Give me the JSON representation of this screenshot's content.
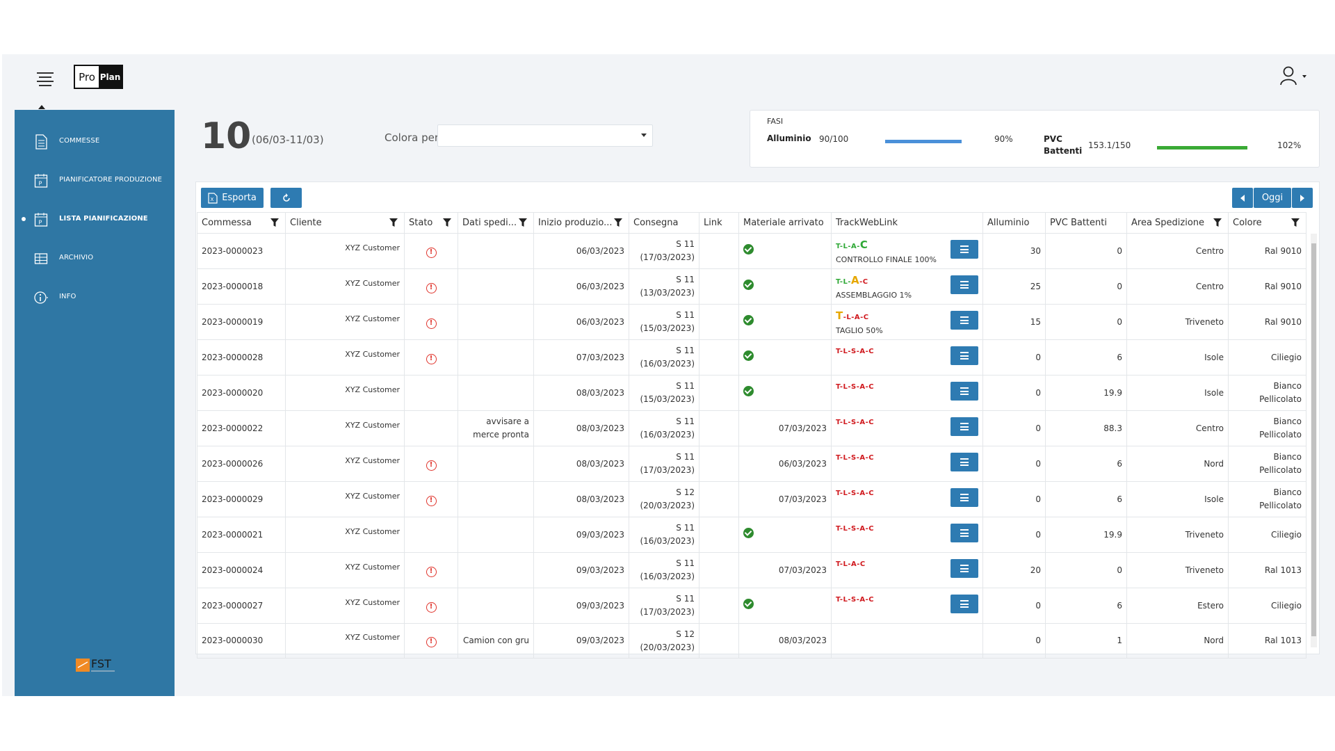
{
  "logo": {
    "pro": "Pro",
    "plan": "Plan"
  },
  "sidebar": {
    "items": [
      {
        "label": "COMMESSE",
        "icon": "document-icon"
      },
      {
        "label": "PIANIFICATORE PRODUZIONE",
        "icon": "calendar-p-icon"
      },
      {
        "label": "LISTA PIANIFICAZIONE",
        "icon": "calendar-p-icon",
        "active": true
      },
      {
        "label": "ARCHIVIO",
        "icon": "archive-grid-icon"
      },
      {
        "label": "INFO",
        "icon": "info-icon"
      }
    ],
    "footer_logo": "FST"
  },
  "header": {
    "week": "10",
    "range": "(06/03-11/03)",
    "colora_label": "Colora per",
    "colora_value": ""
  },
  "fasi": {
    "title": "FASI",
    "items": [
      {
        "name": "Alluminio",
        "value": "90/100",
        "percent": "90%",
        "fill": 0.9,
        "color": "#4a90d9"
      },
      {
        "name": "PVC Battenti",
        "value": "153.1/150",
        "percent": "102%",
        "fill": 1.0,
        "color": "#3aaa35"
      }
    ]
  },
  "toolbar": {
    "export_label": "Esporta",
    "today_label": "Oggi"
  },
  "table": {
    "columns": [
      "Commessa",
      "Cliente",
      "Stato",
      "Dati spedi...",
      "Inizio produzio...",
      "Consegna",
      "Link",
      "Materiale arrivato",
      "TrackWebLink",
      "Alluminio",
      "PVC Battenti",
      "Area Spedizione",
      "Colore"
    ],
    "rows": [
      {
        "commessa": "2023-0000023",
        "cliente": "XYZ Customer",
        "warn": true,
        "dati": "",
        "inizio": "06/03/2023",
        "cons1": "S 11",
        "cons2": "(17/03/2023)",
        "mat": "ok",
        "track": "T-L-A-C",
        "trackStyle": "a",
        "trackSub": "CONTROLLO FINALE 100%",
        "all": "30",
        "pvc": "0",
        "area": "Centro",
        "col1": "Ral 9010",
        "col2": ""
      },
      {
        "commessa": "2023-0000018",
        "cliente": "XYZ Customer",
        "warn": true,
        "dati": "",
        "inizio": "06/03/2023",
        "cons1": "S 11",
        "cons2": "(13/03/2023)",
        "mat": "ok",
        "track": "T-L-A-C",
        "trackStyle": "b",
        "trackSub": "ASSEMBLAGGIO 1%",
        "all": "25",
        "pvc": "0",
        "area": "Centro",
        "col1": "Ral 9010",
        "col2": ""
      },
      {
        "commessa": "2023-0000019",
        "cliente": "XYZ Customer",
        "warn": true,
        "dati": "",
        "inizio": "06/03/2023",
        "cons1": "S 11",
        "cons2": "(15/03/2023)",
        "mat": "ok",
        "track": "T-L-A-C",
        "trackStyle": "c",
        "trackSub": "TAGLIO 50%",
        "all": "15",
        "pvc": "0",
        "area": "Triveneto",
        "col1": "Ral 9010",
        "col2": ""
      },
      {
        "commessa": "2023-0000028",
        "cliente": "XYZ Customer",
        "warn": true,
        "dati": "",
        "inizio": "07/03/2023",
        "cons1": "S 11",
        "cons2": "(16/03/2023)",
        "mat": "ok",
        "track": "T-L-S-A-C",
        "trackStyle": "r",
        "trackSub": "",
        "all": "0",
        "pvc": "6",
        "area": "Isole",
        "col1": "Ciliegio",
        "col2": ""
      },
      {
        "commessa": "2023-0000020",
        "cliente": "XYZ Customer",
        "warn": false,
        "dati": "",
        "inizio": "08/03/2023",
        "cons1": "S 11",
        "cons2": "(15/03/2023)",
        "mat": "ok",
        "track": "T-L-S-A-C",
        "trackStyle": "r",
        "trackSub": "",
        "all": "0",
        "pvc": "19.9",
        "area": "Isole",
        "col1": "Bianco",
        "col2": "Pellicolato"
      },
      {
        "commessa": "2023-0000022",
        "cliente": "XYZ Customer",
        "warn": false,
        "dati": "avvisare a merce pronta",
        "inizio": "08/03/2023",
        "cons1": "S 11",
        "cons2": "(16/03/2023)",
        "mat": "07/03/2023",
        "track": "T-L-S-A-C",
        "trackStyle": "r",
        "trackSub": "",
        "all": "0",
        "pvc": "88.3",
        "area": "Centro",
        "col1": "Bianco",
        "col2": "Pellicolato"
      },
      {
        "commessa": "2023-0000026",
        "cliente": "XYZ Customer",
        "warn": true,
        "dati": "",
        "inizio": "08/03/2023",
        "cons1": "S 11",
        "cons2": "(17/03/2023)",
        "mat": "06/03/2023",
        "track": "T-L-S-A-C",
        "trackStyle": "r",
        "trackSub": "",
        "all": "0",
        "pvc": "6",
        "area": "Nord",
        "col1": "Bianco",
        "col2": "Pellicolato"
      },
      {
        "commessa": "2023-0000029",
        "cliente": "XYZ Customer",
        "warn": true,
        "dati": "",
        "inizio": "08/03/2023",
        "cons1": "S 12",
        "cons2": "(20/03/2023)",
        "mat": "07/03/2023",
        "track": "T-L-S-A-C",
        "trackStyle": "r",
        "trackSub": "",
        "all": "0",
        "pvc": "6",
        "area": "Isole",
        "col1": "Bianco",
        "col2": "Pellicolato"
      },
      {
        "commessa": "2023-0000021",
        "cliente": "XYZ Customer",
        "warn": false,
        "dati": "",
        "inizio": "09/03/2023",
        "cons1": "S 11",
        "cons2": "(16/03/2023)",
        "mat": "ok",
        "track": "T-L-S-A-C",
        "trackStyle": "r",
        "trackSub": "",
        "all": "0",
        "pvc": "19.9",
        "area": "Triveneto",
        "col1": "Ciliegio",
        "col2": ""
      },
      {
        "commessa": "2023-0000024",
        "cliente": "XYZ Customer",
        "warn": true,
        "dati": "",
        "inizio": "09/03/2023",
        "cons1": "S 11",
        "cons2": "(16/03/2023)",
        "mat": "07/03/2023",
        "track": "T-L-A-C",
        "trackStyle": "r",
        "trackSub": "",
        "all": "20",
        "pvc": "0",
        "area": "Triveneto",
        "col1": "Ral 1013",
        "col2": ""
      },
      {
        "commessa": "2023-0000027",
        "cliente": "XYZ Customer",
        "warn": true,
        "dati": "",
        "inizio": "09/03/2023",
        "cons1": "S 11",
        "cons2": "(17/03/2023)",
        "mat": "ok",
        "track": "T-L-S-A-C",
        "trackStyle": "r",
        "trackSub": "",
        "all": "0",
        "pvc": "6",
        "area": "Estero",
        "col1": "Ciliegio",
        "col2": ""
      },
      {
        "commessa": "2023-0000030",
        "cliente": "XYZ Customer",
        "warn": true,
        "dati": "Camion con gru",
        "inizio": "09/03/2023",
        "cons1": "S 12",
        "cons2": "(20/03/2023)",
        "mat": "08/03/2023",
        "track": "",
        "trackStyle": "",
        "trackSub": "",
        "all": "0",
        "pvc": "1",
        "area": "Nord",
        "col1": "Ral 1013",
        "col2": ""
      }
    ]
  },
  "colors": {
    "sidebar": "#2f77a4",
    "button": "#2e7bb2",
    "ok": "#2e8b2e",
    "warn": "#e0332b",
    "track_red": "#d0191e",
    "track_green": "#2fa836",
    "track_yellow": "#e6a700"
  }
}
